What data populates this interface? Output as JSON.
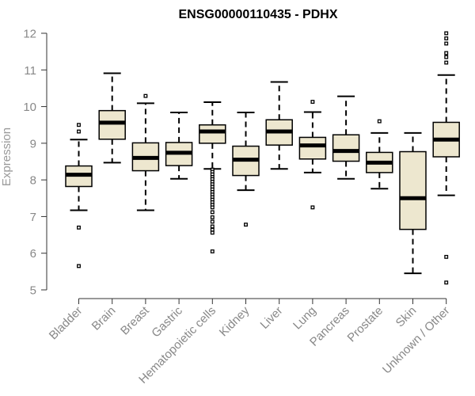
{
  "chart_data": {
    "type": "boxplot",
    "title": "ENSG00000110435 - PDHX",
    "xlabel": "",
    "ylabel": "Expression",
    "ylim": [
      5,
      12
    ],
    "yticks": [
      5,
      6,
      7,
      8,
      9,
      10,
      11,
      12
    ],
    "grid": false,
    "colors": {
      "box_fill": "#ede7cf",
      "stroke": "#000000",
      "tick_label": "#888888"
    },
    "categories": [
      "Bladder",
      "Brain",
      "Breast",
      "Gastric",
      "Hematopoietic cells",
      "Kidney",
      "Liver",
      "Lung",
      "Pancreas",
      "Prostate",
      "Skin",
      "Unknown / Other"
    ],
    "boxes": [
      {
        "category": "Bladder",
        "whisker_low": 7.17,
        "q1": 7.82,
        "median": 8.14,
        "q3": 8.38,
        "whisker_high": 9.1,
        "outliers": [
          9.32,
          9.5,
          6.7,
          5.65
        ]
      },
      {
        "category": "Brain",
        "whisker_low": 8.47,
        "q1": 9.11,
        "median": 9.56,
        "q3": 9.89,
        "whisker_high": 10.91,
        "outliers": []
      },
      {
        "category": "Breast",
        "whisker_low": 7.17,
        "q1": 8.25,
        "median": 8.6,
        "q3": 9.01,
        "whisker_high": 10.09,
        "outliers": [
          10.29
        ]
      },
      {
        "category": "Gastric",
        "whisker_low": 8.03,
        "q1": 8.39,
        "median": 8.74,
        "q3": 9.02,
        "whisker_high": 9.84,
        "outliers": []
      },
      {
        "category": "Hematopoietic cells",
        "whisker_low": 8.3,
        "q1": 9.0,
        "median": 9.32,
        "q3": 9.5,
        "whisker_high": 10.12,
        "outliers": [
          8.28,
          8.22,
          8.15,
          8.08,
          8.02,
          7.95,
          7.88,
          7.81,
          7.74,
          7.67,
          7.6,
          7.53,
          7.46,
          7.39,
          7.32,
          7.25,
          7.12,
          6.98,
          6.86,
          6.73,
          6.64,
          6.56,
          6.05
        ]
      },
      {
        "category": "Kidney",
        "whisker_low": 7.72,
        "q1": 8.12,
        "median": 8.55,
        "q3": 8.92,
        "whisker_high": 9.84,
        "outliers": [
          6.78
        ]
      },
      {
        "category": "Liver",
        "whisker_low": 8.3,
        "q1": 8.95,
        "median": 9.32,
        "q3": 9.64,
        "whisker_high": 10.67,
        "outliers": []
      },
      {
        "category": "Lung",
        "whisker_low": 8.2,
        "q1": 8.57,
        "median": 8.94,
        "q3": 9.16,
        "whisker_high": 9.85,
        "outliers": [
          10.13,
          7.25
        ]
      },
      {
        "category": "Pancreas",
        "whisker_low": 8.03,
        "q1": 8.51,
        "median": 8.79,
        "q3": 9.23,
        "whisker_high": 10.28,
        "outliers": []
      },
      {
        "category": "Prostate",
        "whisker_low": 7.76,
        "q1": 8.2,
        "median": 8.47,
        "q3": 8.75,
        "whisker_high": 9.28,
        "outliers": [
          9.6
        ]
      },
      {
        "category": "Skin",
        "whisker_low": 5.45,
        "q1": 6.65,
        "median": 7.5,
        "q3": 8.77,
        "whisker_high": 9.28,
        "outliers": []
      },
      {
        "category": "Unknown / Other",
        "whisker_low": 7.58,
        "q1": 8.63,
        "median": 9.1,
        "q3": 9.57,
        "whisker_high": 10.86,
        "outliers": [
          12.0,
          11.86,
          11.72,
          11.46,
          11.35,
          11.2,
          5.9,
          5.2
        ]
      }
    ]
  }
}
